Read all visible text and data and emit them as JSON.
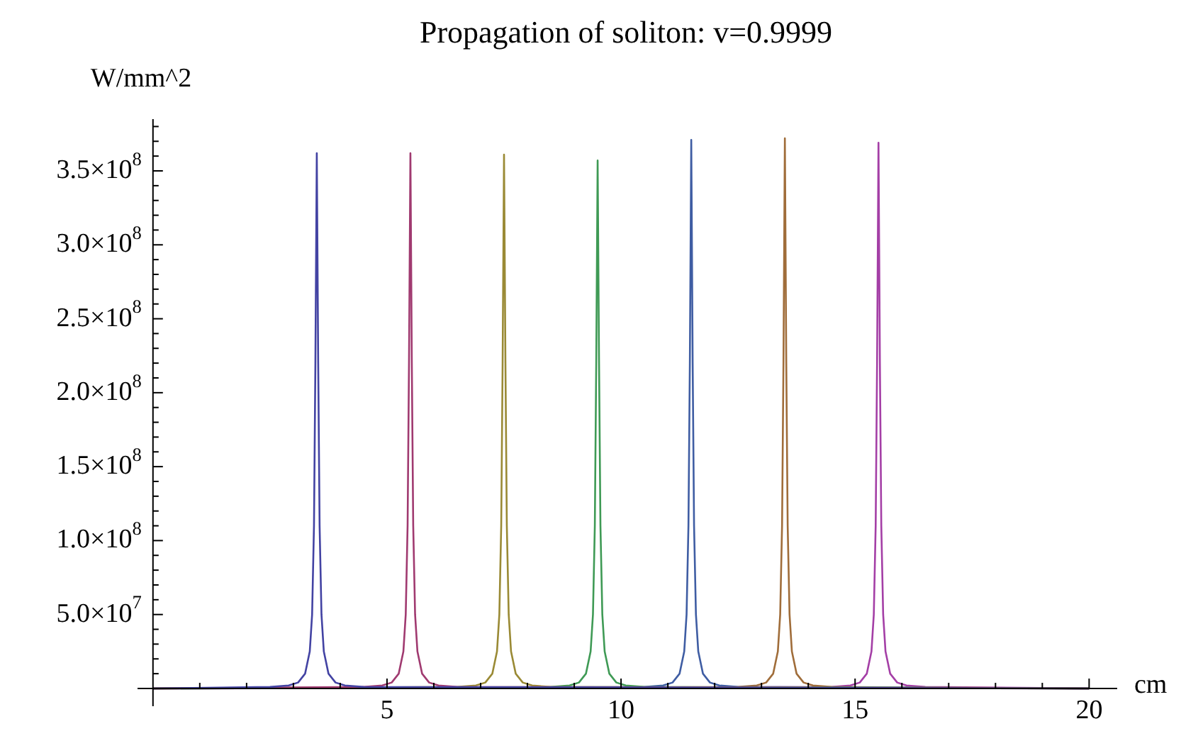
{
  "chart_data": {
    "type": "line",
    "title": "Propagation of soliton: v=0.9999",
    "xlabel": "cm",
    "ylabel": "W/mm^2",
    "marker": "none",
    "line_style": "solid",
    "grid": false,
    "legend": false,
    "xlim": [
      -0.33,
      20.6
    ],
    "ylim": [
      -12000000,
      385000000
    ],
    "xticks": [
      {
        "value": 1,
        "label": null
      },
      {
        "value": 2,
        "label": null
      },
      {
        "value": 3,
        "label": null
      },
      {
        "value": 4,
        "label": null
      },
      5,
      {
        "value": 6,
        "label": null
      },
      {
        "value": 7,
        "label": null
      },
      {
        "value": 8,
        "label": null
      },
      {
        "value": 9,
        "label": null
      },
      10,
      {
        "value": 11,
        "label": null
      },
      {
        "value": 12,
        "label": null
      },
      {
        "value": 13,
        "label": null
      },
      {
        "value": 14,
        "label": null
      },
      15,
      {
        "value": 16,
        "label": null
      },
      {
        "value": 17,
        "label": null
      },
      {
        "value": 18,
        "label": null
      },
      {
        "value": 19,
        "label": null
      },
      20
    ],
    "yticks": [
      {
        "value": 10000000,
        "label": null
      },
      {
        "value": 20000000,
        "label": null
      },
      {
        "value": 30000000,
        "label": null
      },
      {
        "value": 40000000,
        "label": null
      },
      {
        "value": 50000000,
        "label": "5.0×10$^{7}$"
      },
      {
        "value": 60000000,
        "label": null
      },
      {
        "value": 70000000,
        "label": null
      },
      {
        "value": 80000000,
        "label": null
      },
      {
        "value": 90000000,
        "label": null
      },
      {
        "value": 100000000,
        "label": "1.0×10$^{8}$"
      },
      {
        "value": 110000000,
        "label": null
      },
      {
        "value": 120000000,
        "label": null
      },
      {
        "value": 130000000,
        "label": null
      },
      {
        "value": 140000000,
        "label": null
      },
      {
        "value": 150000000,
        "label": "1.5×10$^{8}$"
      },
      {
        "value": 160000000,
        "label": null
      },
      {
        "value": 170000000,
        "label": null
      },
      {
        "value": 180000000,
        "label": null
      },
      {
        "value": 190000000,
        "label": null
      },
      {
        "value": 200000000,
        "label": "2.0×10$^{8}$"
      },
      {
        "value": 210000000,
        "label": null
      },
      {
        "value": 220000000,
        "label": null
      },
      {
        "value": 230000000,
        "label": null
      },
      {
        "value": 240000000,
        "label": null
      },
      {
        "value": 250000000,
        "label": "2.5×10$^{8}$"
      },
      {
        "value": 260000000,
        "label": null
      },
      {
        "value": 270000000,
        "label": null
      },
      {
        "value": 280000000,
        "label": null
      },
      {
        "value": 290000000,
        "label": null
      },
      {
        "value": 300000000,
        "label": "3.0×10$^{8}$"
      },
      {
        "value": 310000000,
        "label": null
      },
      {
        "value": 320000000,
        "label": null
      },
      {
        "value": 330000000,
        "label": null
      },
      {
        "value": 340000000,
        "label": null
      },
      {
        "value": 350000000,
        "label": "3.5×10$^{8}$"
      },
      {
        "value": 360000000,
        "label": null
      },
      {
        "value": 370000000,
        "label": null
      },
      {
        "value": 380000000,
        "label": null
      }
    ],
    "series": [
      {
        "color": "#4343a3",
        "x": [
          0,
          2.5,
          2.9,
          3.1,
          3.25,
          3.35,
          3.4,
          3.44,
          3.47,
          3.5,
          3.53,
          3.56,
          3.6,
          3.65,
          3.75,
          3.9,
          4.1,
          4.5,
          20
        ],
        "values": [
          0,
          1000000,
          2000000,
          4000000,
          10000000,
          25000000,
          50000000,
          110000000,
          220000000,
          362000000,
          220000000,
          110000000,
          50000000,
          25000000,
          10000000,
          4000000,
          2000000,
          1000000,
          0
        ]
      },
      {
        "color": "#a03a70",
        "x": [
          0,
          4.5,
          4.9,
          5.1,
          5.25,
          5.35,
          5.4,
          5.44,
          5.47,
          5.5,
          5.53,
          5.56,
          5.6,
          5.65,
          5.75,
          5.9,
          6.1,
          6.5,
          20
        ],
        "values": [
          0,
          1000000,
          2000000,
          4000000,
          10000000,
          25000000,
          50000000,
          110000000,
          220000000,
          362000000,
          220000000,
          110000000,
          50000000,
          25000000,
          10000000,
          4000000,
          2000000,
          1000000,
          0
        ]
      },
      {
        "color": "#9a8a35",
        "x": [
          0,
          6.5,
          6.9,
          7.1,
          7.25,
          7.35,
          7.4,
          7.44,
          7.47,
          7.5,
          7.53,
          7.56,
          7.6,
          7.65,
          7.75,
          7.9,
          8.1,
          8.5,
          20
        ],
        "values": [
          0,
          1000000,
          2000000,
          4000000,
          10000000,
          25000000,
          50000000,
          110000000,
          220000000,
          361000000,
          220000000,
          110000000,
          50000000,
          25000000,
          10000000,
          4000000,
          2000000,
          1000000,
          0
        ]
      },
      {
        "color": "#3f9a55",
        "x": [
          0,
          8.5,
          8.9,
          9.1,
          9.25,
          9.35,
          9.4,
          9.44,
          9.47,
          9.5,
          9.53,
          9.56,
          9.6,
          9.65,
          9.75,
          9.9,
          10.1,
          10.5,
          20
        ],
        "values": [
          0,
          1000000,
          2000000,
          4000000,
          10000000,
          25000000,
          50000000,
          110000000,
          220000000,
          357000000,
          220000000,
          110000000,
          50000000,
          25000000,
          10000000,
          4000000,
          2000000,
          1000000,
          0
        ]
      },
      {
        "color": "#3f5da3",
        "x": [
          0,
          10.5,
          10.9,
          11.1,
          11.25,
          11.35,
          11.4,
          11.44,
          11.47,
          11.5,
          11.53,
          11.56,
          11.6,
          11.65,
          11.75,
          11.9,
          12.1,
          12.5,
          20
        ],
        "values": [
          0,
          1000000,
          2000000,
          4000000,
          10000000,
          25000000,
          50000000,
          110000000,
          220000000,
          371000000,
          220000000,
          110000000,
          50000000,
          25000000,
          10000000,
          4000000,
          2000000,
          1000000,
          0
        ]
      },
      {
        "color": "#a06d3a",
        "x": [
          0,
          12.5,
          12.9,
          13.1,
          13.25,
          13.35,
          13.4,
          13.44,
          13.47,
          13.5,
          13.53,
          13.56,
          13.6,
          13.65,
          13.75,
          13.9,
          14.1,
          14.5,
          20
        ],
        "values": [
          0,
          1000000,
          2000000,
          4000000,
          10000000,
          25000000,
          50000000,
          110000000,
          220000000,
          372000000,
          220000000,
          110000000,
          50000000,
          25000000,
          10000000,
          4000000,
          2000000,
          1000000,
          0
        ]
      },
      {
        "color": "#a43fa6",
        "x": [
          0,
          14.5,
          14.9,
          15.1,
          15.25,
          15.35,
          15.4,
          15.44,
          15.47,
          15.5,
          15.53,
          15.56,
          15.6,
          15.65,
          15.75,
          15.9,
          16.1,
          16.5,
          20
        ],
        "values": [
          0,
          1000000,
          2000000,
          4000000,
          10000000,
          25000000,
          50000000,
          110000000,
          220000000,
          369000000,
          220000000,
          110000000,
          50000000,
          25000000,
          10000000,
          4000000,
          2000000,
          1000000,
          0
        ]
      }
    ]
  }
}
